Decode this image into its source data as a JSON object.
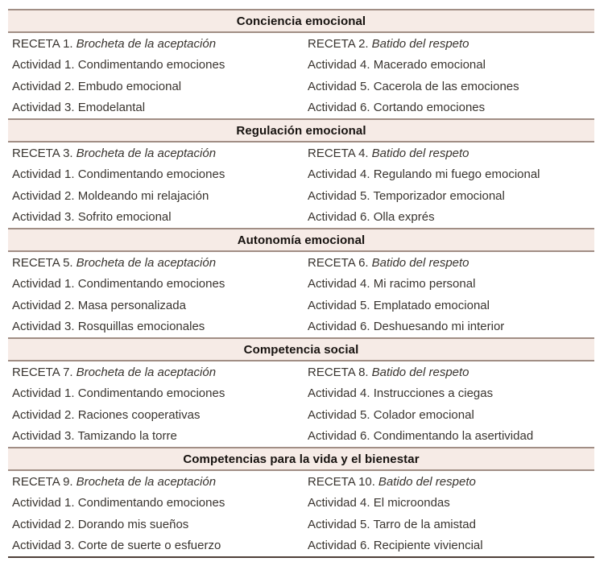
{
  "colors": {
    "band_background": "#f6ebe6",
    "band_border": "#a18e85",
    "table_bottom_border": "#4e4039",
    "body_text": "#39342f",
    "header_text": "#16120f"
  },
  "table": {
    "sections": [
      {
        "header": "Conciencia emocional",
        "left": {
          "recipe_label": "RECETA 1.",
          "recipe_title": "Brocheta de la aceptación",
          "activities": [
            "Actividad 1. Condimentando emociones",
            "Actividad 2. Embudo emocional",
            "Actividad 3. Emodelantal"
          ]
        },
        "right": {
          "recipe_label": "RECETA 2.",
          "recipe_title": "Batido del respeto",
          "activities": [
            "Actividad 4. Macerado emocional",
            "Actividad 5. Cacerola de las emociones",
            "Actividad 6. Cortando emociones"
          ]
        }
      },
      {
        "header": "Regulación emocional",
        "left": {
          "recipe_label": "RECETA 3.",
          "recipe_title": "Brocheta de la aceptación",
          "activities": [
            "Actividad 1. Condimentando emociones",
            "Actividad 2. Moldeando mi relajación",
            "Actividad 3. Sofrito emocional"
          ]
        },
        "right": {
          "recipe_label": "RECETA 4.",
          "recipe_title": "Batido del respeto",
          "activities": [
            "Actividad 4. Regulando mi fuego emocional",
            "Actividad 5. Temporizador emocional",
            "Actividad 6. Olla exprés"
          ]
        }
      },
      {
        "header": "Autonomía emocional",
        "left": {
          "recipe_label": "RECETA 5.",
          "recipe_title": "Brocheta de la aceptación",
          "activities": [
            "Actividad 1. Condimentando emociones",
            "Actividad 2. Masa personalizada",
            "Actividad 3. Rosquillas emocionales"
          ]
        },
        "right": {
          "recipe_label": "RECETA 6.",
          "recipe_title": "Batido del respeto",
          "activities": [
            "Actividad 4. Mi racimo personal",
            "Actividad 5. Emplatado emocional",
            "Actividad 6. Deshuesando mi interior"
          ]
        }
      },
      {
        "header": "Competencia social",
        "left": {
          "recipe_label": "RECETA 7.",
          "recipe_title": "Brocheta de la aceptación",
          "activities": [
            "Actividad 1. Condimentando emociones",
            "Actividad 2. Raciones cooperativas",
            "Actividad 3. Tamizando la torre"
          ]
        },
        "right": {
          "recipe_label": "RECETA 8.",
          "recipe_title": "Batido del respeto",
          "activities": [
            "Actividad 4. Instrucciones a ciegas",
            "Actividad 5. Colador emocional",
            "Actividad 6. Condimentando la asertividad"
          ]
        }
      },
      {
        "header": "Competencias para la vida y el bienestar",
        "left": {
          "recipe_label": "RECETA 9.",
          "recipe_title": "Brocheta de la aceptación",
          "activities": [
            "Actividad 1. Condimentando emociones",
            "Actividad 2. Dorando mis sueños",
            "Actividad 3. Corte de suerte o esfuerzo"
          ]
        },
        "right": {
          "recipe_label": "RECETA 10.",
          "recipe_title": "Batido del respeto",
          "activities": [
            "Actividad 4. El microondas",
            "Actividad 5. Tarro de la amistad",
            "Actividad 6. Recipiente viviencial"
          ]
        }
      }
    ]
  }
}
